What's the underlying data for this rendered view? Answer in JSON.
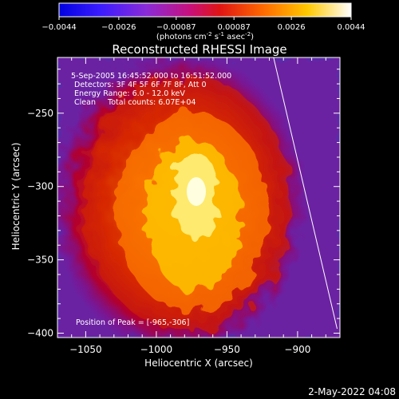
{
  "colorbar": {
    "ticks": [
      "-0.0044",
      "-0.0026",
      "-0.00087",
      "0.00087",
      "0.0026",
      "0.0044"
    ],
    "unit_label": "(photons cm",
    "unit_sup1": "-2",
    "unit_mid1": " s",
    "unit_sup2": "-1",
    "unit_mid2": " asec",
    "unit_sup3": "-2",
    "unit_end": ")",
    "range": [
      -0.0044,
      0.0044
    ]
  },
  "chart_data": {
    "type": "heatmap",
    "title": "Reconstructed RHESSI Image",
    "xlabel": "Heliocentric X (arcsec)",
    "ylabel": "Heliocentric Y (arcsec)",
    "xlim": [
      -1070,
      -870
    ],
    "ylim": [
      -403,
      -212
    ],
    "xticks": [
      -1050,
      -1000,
      -950,
      -900
    ],
    "yticks": [
      -250,
      -300,
      -350,
      -400
    ],
    "xtick_labels": [
      "−1050",
      "−1000",
      "−950",
      "−900"
    ],
    "ytick_labels": [
      "−250",
      "−300",
      "−350",
      "−400"
    ],
    "annotations": [
      "5-Sep-2005 16:45:52.000 to 16:51:52.000",
      "Detectors: 3F 4F 5F 6F 7F 8F, Att 0",
      "Energy Range: 6.0 - 12.0 keV",
      "Clean     Total counts: 6.07E+04"
    ],
    "peak_label": "Position of Peak = [-965,-306]",
    "peak": [
      -965,
      -306
    ],
    "limb_line": [
      [
        -917,
        -212
      ],
      [
        -872,
        -397
      ]
    ]
  },
  "footer": {
    "date": "2-May-2022 04:08"
  }
}
